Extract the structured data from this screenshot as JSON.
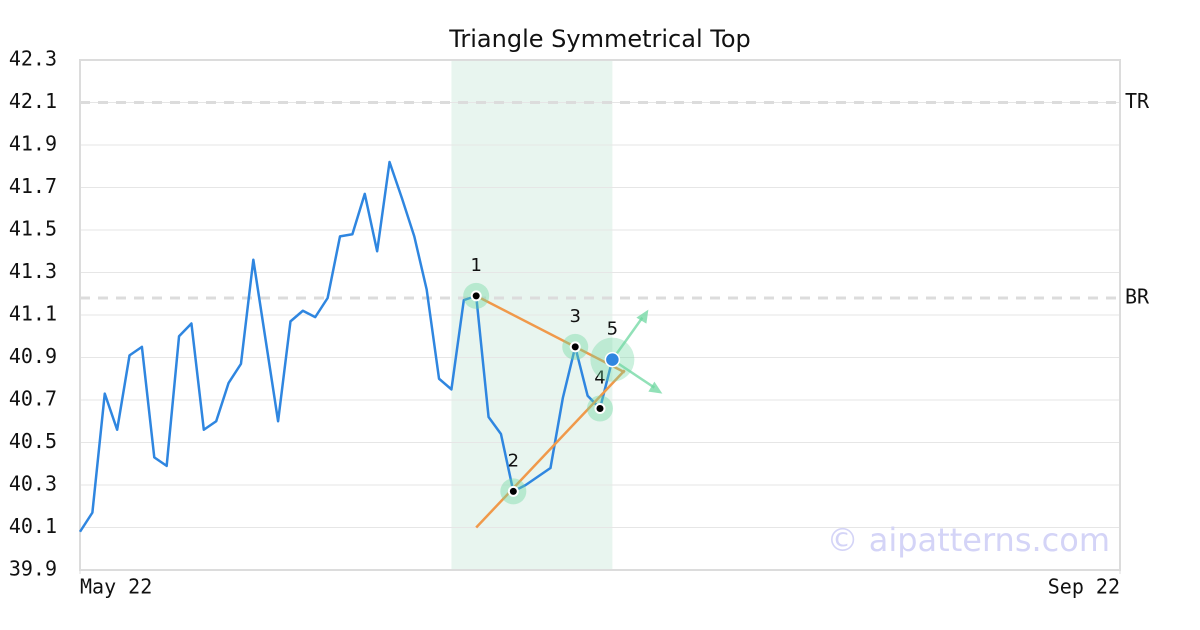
{
  "chart_data": {
    "type": "line",
    "title": "Triangle Symmetrical Top",
    "x": [
      0,
      1,
      2,
      3,
      4,
      5,
      6,
      7,
      8,
      9,
      10,
      11,
      12,
      13,
      14,
      15,
      16,
      17,
      18,
      19,
      20,
      21,
      22,
      23,
      24,
      25,
      26,
      27,
      28,
      29,
      30,
      31,
      32,
      33,
      34,
      35,
      36,
      37,
      38,
      39,
      40,
      41,
      42,
      43
    ],
    "series": [
      {
        "color": "#2f86e0",
        "values": [
          40.08,
          40.17,
          40.73,
          40.56,
          40.91,
          40.95,
          40.43,
          40.39,
          41.0,
          41.06,
          40.56,
          40.6,
          40.78,
          40.87,
          41.36,
          40.98,
          40.6,
          41.07,
          41.12,
          41.09,
          41.18,
          41.47,
          41.48,
          41.67,
          41.4,
          41.82,
          41.65,
          41.47,
          41.22,
          40.8,
          40.75,
          41.17,
          41.19,
          40.62,
          40.54,
          40.27,
          40.3,
          40.34,
          40.38,
          40.71,
          40.95,
          40.72,
          40.66,
          40.89
        ]
      }
    ],
    "xlim": [
      0,
      84
    ],
    "xticks": [
      {
        "value": 0,
        "label": "May 22"
      },
      {
        "value": 84,
        "label": "Sep 22"
      }
    ],
    "ylim": [
      39.9,
      42.3
    ],
    "yticks": [
      39.9,
      40.1,
      40.3,
      40.5,
      40.7,
      40.9,
      41.1,
      41.3,
      41.5,
      41.7,
      41.9,
      42.1,
      42.3
    ],
    "grid": true,
    "levels": [
      {
        "label": "TR",
        "value": 42.1
      },
      {
        "label": "BR",
        "value": 41.18
      }
    ],
    "highlight": {
      "x": [
        30,
        43
      ],
      "color": "#e8f5ef"
    },
    "pattern": {
      "color": "#f0994a",
      "points": [
        {
          "label": "1",
          "x": 32,
          "value": 41.19
        },
        {
          "label": "2",
          "x": 35,
          "value": 40.27
        },
        {
          "label": "3",
          "x": 40,
          "value": 40.95
        },
        {
          "label": "4",
          "x": 42,
          "value": 40.66
        },
        {
          "label": "5",
          "x": 43,
          "value": 40.89
        }
      ],
      "lines": [
        {
          "x": [
            32,
            44
          ],
          "values": [
            41.19,
            40.83
          ]
        },
        {
          "x": [
            32,
            44
          ],
          "values": [
            40.1,
            40.84
          ]
        }
      ]
    },
    "watermark": "© aipatterns.com"
  }
}
